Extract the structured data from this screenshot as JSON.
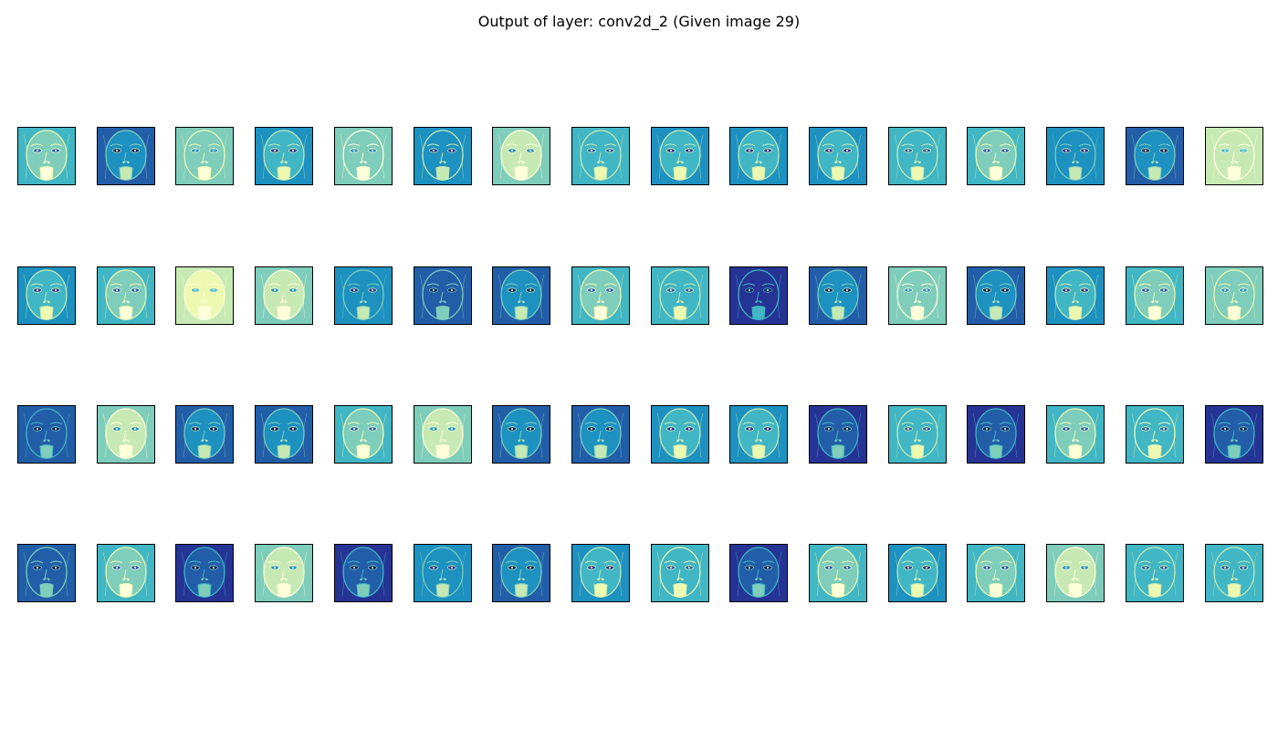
{
  "figure": {
    "title": "Output of layer: conv2d_2 (Given image 29)",
    "rows": 4,
    "cols": 16,
    "colormap": "YlGnBu",
    "palette": [
      "#ffffd9",
      "#edf8b1",
      "#c7e9b4",
      "#7fcdbb",
      "#41b6c4",
      "#1d91c0",
      "#225ea8",
      "#253494",
      "#081d58"
    ],
    "tone": [
      [
        0.45,
        0.72,
        0.42,
        0.62,
        0.4,
        0.66,
        0.35,
        0.55,
        0.6,
        0.6,
        0.6,
        0.55,
        0.5,
        0.68,
        0.75,
        0.3
      ],
      [
        0.6,
        0.45,
        0.25,
        0.38,
        0.68,
        0.78,
        0.72,
        0.5,
        0.55,
        0.9,
        0.72,
        0.4,
        0.7,
        0.62,
        0.48,
        0.42
      ],
      [
        0.8,
        0.35,
        0.72,
        0.7,
        0.45,
        0.38,
        0.7,
        0.72,
        0.62,
        0.58,
        0.88,
        0.55,
        0.88,
        0.45,
        0.52,
        0.85
      ],
      [
        0.78,
        0.5,
        0.88,
        0.35,
        0.85,
        0.68,
        0.75,
        0.58,
        0.52,
        0.85,
        0.45,
        0.58,
        0.45,
        0.32,
        0.55,
        0.55
      ]
    ]
  }
}
